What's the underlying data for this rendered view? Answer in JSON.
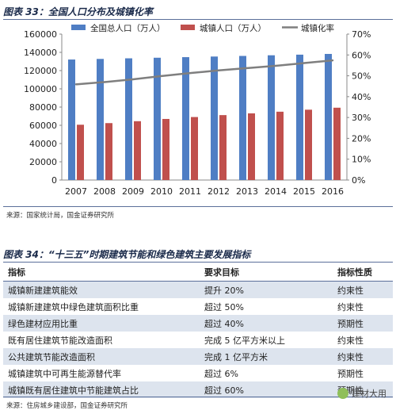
{
  "figure33": {
    "title": "图表 33：全国人口分布及城镇化率",
    "source": "来源：国家统计局，国金证券研究所"
  },
  "chart_data": {
    "type": "bar",
    "categories": [
      "2007",
      "2008",
      "2009",
      "2010",
      "2011",
      "2012",
      "2013",
      "2014",
      "2015",
      "2016"
    ],
    "series": [
      {
        "name": "全国总人口（万人）",
        "type": "bar",
        "axis": "left",
        "color": "#4f7ec4",
        "values": [
          132129,
          132802,
          133450,
          134091,
          134735,
          135404,
          136072,
          136782,
          137462,
          138271
        ]
      },
      {
        "name": "城镇人口（万人）",
        "type": "bar",
        "axis": "left",
        "color": "#c0504d",
        "values": [
          60633,
          62403,
          64512,
          66978,
          69079,
          71182,
          73111,
          74916,
          77116,
          79298
        ]
      },
      {
        "name": "城镇化率",
        "type": "line",
        "axis": "right",
        "color": "#7f7f7f",
        "values": [
          45.9,
          47.0,
          48.3,
          49.9,
          51.3,
          52.6,
          53.7,
          54.8,
          56.1,
          57.4
        ]
      }
    ],
    "ylim": [
      0,
      160000
    ],
    "yticks": [
      "0",
      "20000",
      "40000",
      "60000",
      "80000",
      "100000",
      "120000",
      "140000",
      "160000"
    ],
    "y2lim": [
      0,
      70
    ],
    "y2ticks": [
      "0%",
      "10%",
      "20%",
      "30%",
      "40%",
      "50%",
      "60%",
      "70%"
    ],
    "grid": false,
    "legend_position": "top"
  },
  "figure34": {
    "title": "图表 34：“十三五”时期建筑节能和绿色建筑主要发展指标",
    "headers": [
      "指标",
      "要求目标",
      "指标性质"
    ],
    "rows": [
      [
        "城镇新建建筑能效",
        "提升 20%",
        "约束性"
      ],
      [
        "城镇新建建筑中绿色建筑面积比重",
        "超过 50%",
        "约束性"
      ],
      [
        "绿色建材应用比重",
        "超过 40%",
        "预期性"
      ],
      [
        "既有居住建筑节能改造面积",
        "完成 5 亿平方米以上",
        "约束性"
      ],
      [
        "公共建筑节能改造面积",
        "完成 1 亿平方米",
        "约束性"
      ],
      [
        "城镇建筑中可再生能源替代率",
        "超过 6%",
        "预期性"
      ],
      [
        "城镇既有居住建筑中节能建筑占比",
        "超过 60%",
        "预期性"
      ]
    ],
    "source": "来源：住房城乡建设部，国金证券研究所"
  },
  "watermark": {
    "text": "建材大用",
    "icon": "wechat-icon"
  }
}
